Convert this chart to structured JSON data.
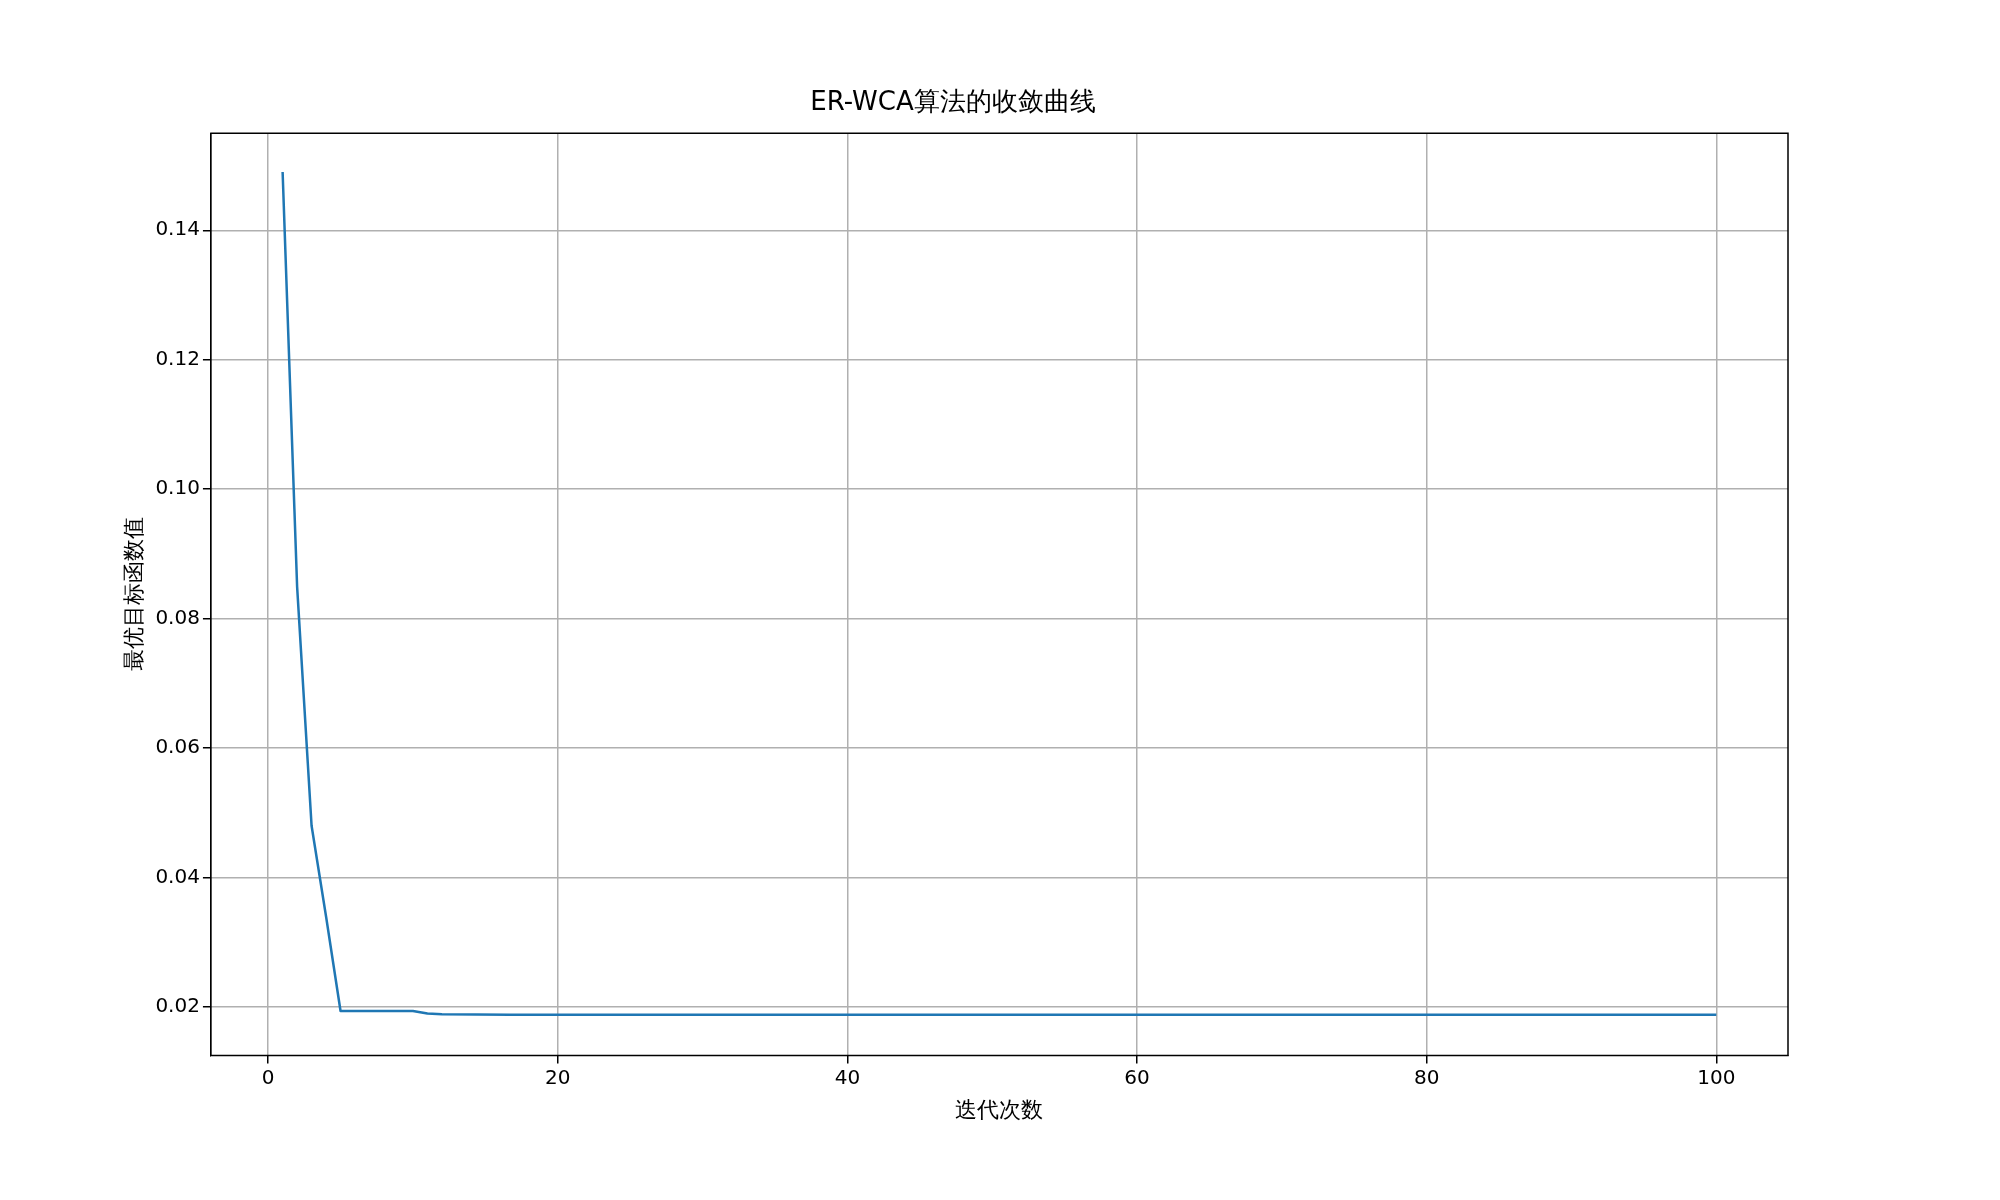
{
  "chart_data": {
    "type": "line",
    "title": "ER-WCA算法的收敛曲线",
    "xlabel": "迭代次数",
    "ylabel": "最优目标函数值",
    "x": [
      1,
      2,
      3,
      4,
      5,
      10,
      11,
      12,
      18,
      100
    ],
    "series": [
      {
        "color": "#1f77b4",
        "values": [
          0.149,
          0.085,
          0.048,
          0.034,
          0.0194,
          0.0194,
          0.019,
          0.0189,
          0.0188,
          0.0188
        ]
      }
    ],
    "xlim": [
      -3.95,
      104.95
    ],
    "ylim": [
      0.0125,
      0.155
    ],
    "xticks": [
      0,
      20,
      40,
      60,
      80,
      100
    ],
    "yticks": [
      {
        "value": 0.02,
        "label": "0.02"
      },
      {
        "value": 0.04,
        "label": "0.04"
      },
      {
        "value": 0.06,
        "label": "0.06"
      },
      {
        "value": 0.08,
        "label": "0.08"
      },
      {
        "value": 0.1,
        "label": "0.10"
      },
      {
        "value": 0.12,
        "label": "0.12"
      },
      {
        "value": 0.14,
        "label": "0.14"
      }
    ],
    "grid": true,
    "legend": false,
    "marker": "none",
    "line_style": "solid"
  }
}
